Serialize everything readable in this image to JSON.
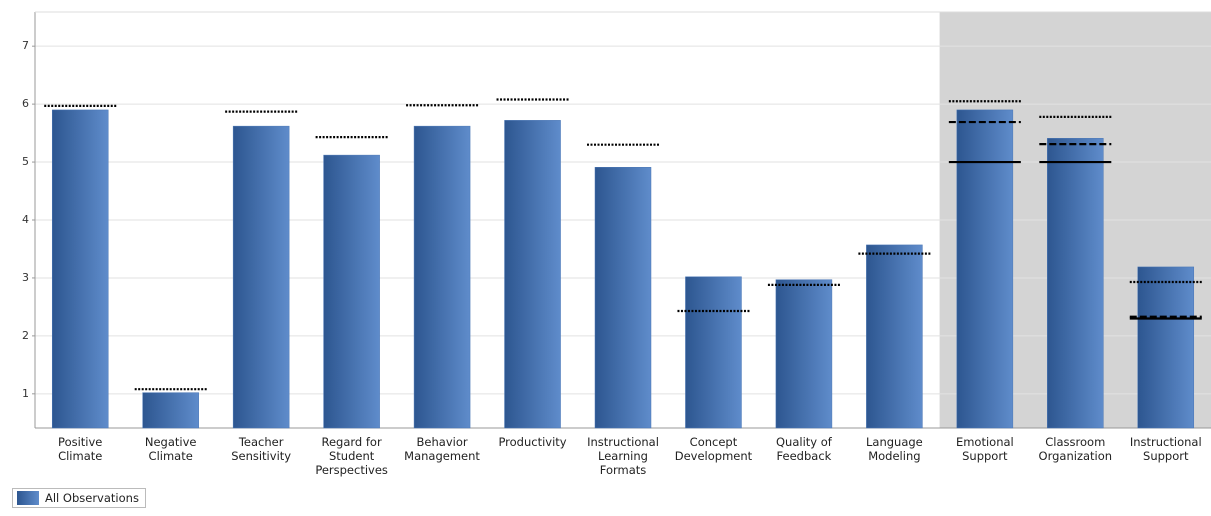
{
  "chart_data": {
    "type": "bar",
    "categories": [
      "Positive\nClimate",
      "Negative\nClimate",
      "Teacher\nSensitivity",
      "Regard for\nStudent\nPerspectives",
      "Behavior\nManagement",
      "Productivity",
      "Instructional\nLearning\nFormats",
      "Concept\nDevelopment",
      "Quality of\nFeedback",
      "Language\nModeling",
      "Emotional\nSupport",
      "Classroom\nOrganization",
      "Instructional\nSupport"
    ],
    "series": [
      {
        "name": "All Observations",
        "color": "#4a76b5",
        "values": [
          5.9,
          1.02,
          5.62,
          5.12,
          5.62,
          5.72,
          4.91,
          3.02,
          2.97,
          3.57,
          5.9,
          5.41,
          3.19
        ]
      },
      {
        "style": "dotted",
        "color": "#000000",
        "values": [
          5.97,
          1.08,
          5.87,
          5.43,
          5.98,
          6.08,
          5.3,
          2.43,
          2.88,
          3.42,
          6.05,
          5.78,
          2.93
        ]
      },
      {
        "style": "dashed",
        "color": "#000000",
        "values": [
          null,
          null,
          null,
          null,
          null,
          null,
          null,
          null,
          null,
          null,
          5.69,
          5.31,
          2.33
        ]
      },
      {
        "style": "solid",
        "color": "#000000",
        "values": [
          null,
          null,
          null,
          null,
          null,
          null,
          null,
          null,
          null,
          null,
          5.0,
          5.0,
          2.3
        ]
      }
    ],
    "highlight": {
      "from": 10,
      "color": "#d4d4d4"
    },
    "ylim": [
      0.41,
      7.59
    ],
    "yticks": [
      1,
      2,
      3,
      4,
      5,
      6,
      7
    ],
    "grid": true
  }
}
